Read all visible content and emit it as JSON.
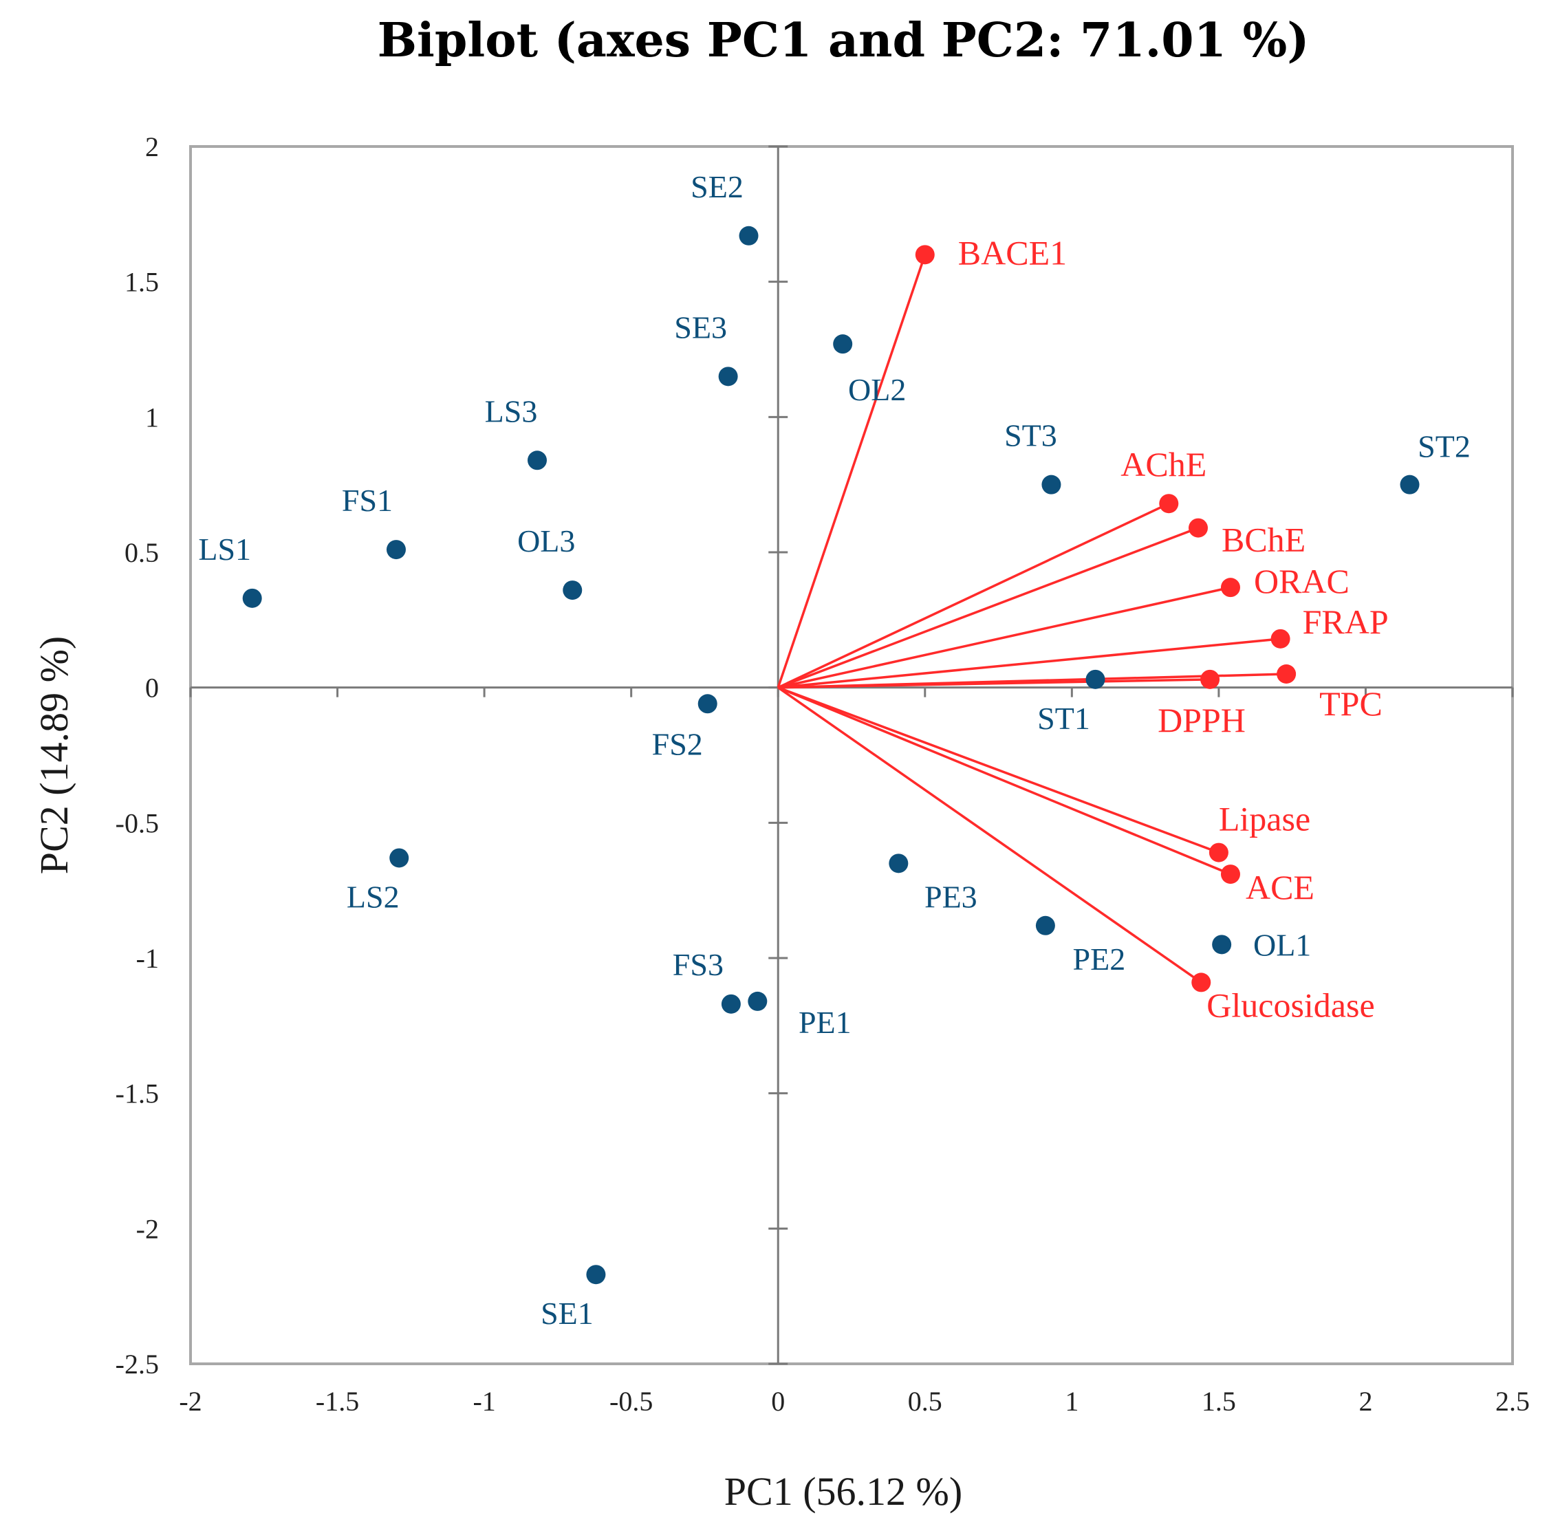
{
  "chart_data": {
    "type": "scatter",
    "title": "Biplot (axes PC1 and PC2: 71.01 %)",
    "xlabel": "PC1 (56.12 %)",
    "ylabel": "PC2 (14.89 %)",
    "xlim": [
      -2,
      2.5
    ],
    "ylim": [
      -2.5,
      2
    ],
    "xticks": [
      "-2",
      "-1.5",
      "-1",
      "-0.5",
      "0",
      "0.5",
      "1",
      "1.5",
      "2",
      "2.5"
    ],
    "yticks": [
      "2",
      "1.5",
      "1",
      "0.5",
      "0",
      "-0.5",
      "-1",
      "-1.5",
      "-2",
      "-2.5"
    ],
    "colors": {
      "observations": "#0d4f7a",
      "variables": "#ff2a2a",
      "frame": "#a8a8a8",
      "axes": "#7a7a7a"
    },
    "observations": [
      {
        "label": "SE2",
        "x": -0.1,
        "y": 1.67
      },
      {
        "label": "SE3",
        "x": -0.17,
        "y": 1.15
      },
      {
        "label": "OL2",
        "x": 0.22,
        "y": 1.27
      },
      {
        "label": "LS3",
        "x": -0.82,
        "y": 0.84
      },
      {
        "label": "FS1",
        "x": -1.3,
        "y": 0.51
      },
      {
        "label": "LS1",
        "x": -1.79,
        "y": 0.33
      },
      {
        "label": "OL3",
        "x": -0.7,
        "y": 0.36
      },
      {
        "label": "ST3",
        "x": 0.93,
        "y": 0.75
      },
      {
        "label": "ST2",
        "x": 2.15,
        "y": 0.75
      },
      {
        "label": "ST1",
        "x": 1.08,
        "y": 0.03
      },
      {
        "label": "FS2",
        "x": -0.24,
        "y": -0.06
      },
      {
        "label": "LS2",
        "x": -1.29,
        "y": -0.63
      },
      {
        "label": "PE3",
        "x": 0.41,
        "y": -0.65
      },
      {
        "label": "PE2",
        "x": 0.91,
        "y": -0.88
      },
      {
        "label": "OL1",
        "x": 1.51,
        "y": -0.95
      },
      {
        "label": "FS3",
        "x": -0.16,
        "y": -1.17
      },
      {
        "label": "PE1",
        "x": -0.07,
        "y": -1.16
      },
      {
        "label": "SE1",
        "x": -0.62,
        "y": -2.17
      }
    ],
    "variables": [
      {
        "label": "BACE1",
        "x": 0.5,
        "y": 1.6
      },
      {
        "label": "AChE",
        "x": 1.33,
        "y": 0.68
      },
      {
        "label": "BChE",
        "x": 1.43,
        "y": 0.59
      },
      {
        "label": "ORAC",
        "x": 1.54,
        "y": 0.37
      },
      {
        "label": "FRAP",
        "x": 1.71,
        "y": 0.18
      },
      {
        "label": "TPC",
        "x": 1.73,
        "y": 0.05
      },
      {
        "label": "DPPH",
        "x": 1.47,
        "y": 0.03
      },
      {
        "label": "Lipase",
        "x": 1.5,
        "y": -0.61
      },
      {
        "label": "ACE",
        "x": 1.54,
        "y": -0.69
      },
      {
        "label": "Glucosidase",
        "x": 1.44,
        "y": -1.09
      }
    ]
  }
}
